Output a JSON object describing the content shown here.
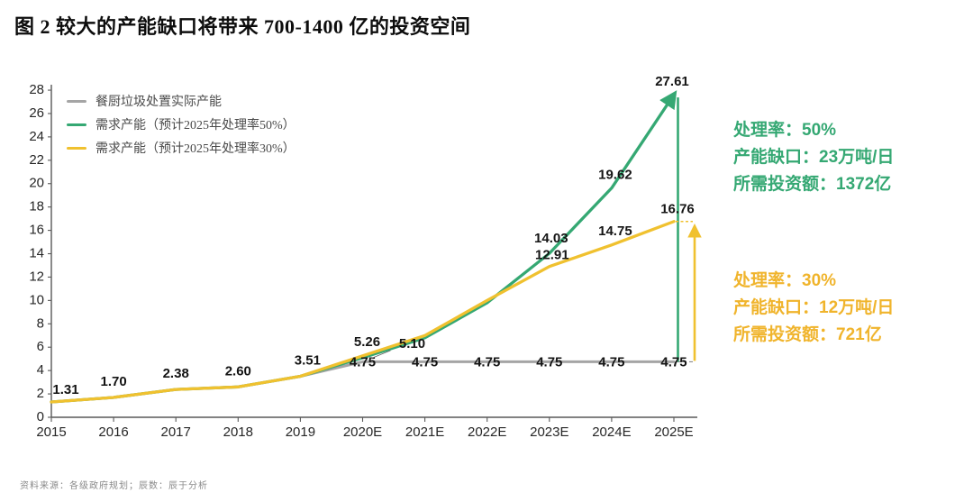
{
  "page": {
    "title": "图 2 较大的产能缺口将带来 700-1400 亿的投资空间",
    "footer": "资料来源：各级政府规划；辰数：辰于分析"
  },
  "colors": {
    "green": "#35a873",
    "yellow": "#f0c12f",
    "yellow_text": "#f0b42c",
    "gray": "#a5a5a5",
    "axis": "#595959"
  },
  "legend": [
    {
      "label": "餐厨垃圾处置实际产能",
      "color_key": "gray"
    },
    {
      "label": "需求产能（预计2025年处理率50%）",
      "color_key": "green"
    },
    {
      "label": "需求产能（预计2025年处理率30%）",
      "color_key": "yellow"
    }
  ],
  "annotations": {
    "green": {
      "lines": [
        {
          "label": "处理率：",
          "value": "50%"
        },
        {
          "label": "产能缺口：",
          "value": "23万吨/日"
        },
        {
          "label": "所需投资额：",
          "value": "1372亿"
        }
      ]
    },
    "yellow": {
      "lines": [
        {
          "label": "处理率：",
          "value": "30%"
        },
        {
          "label": "产能缺口：",
          "value": "12万吨/日"
        },
        {
          "label": "所需投资额：",
          "value": "721亿"
        }
      ]
    }
  },
  "chart_data": {
    "type": "line",
    "title": "图 2 较大的产能缺口将带来 700-1400 亿的投资空间",
    "categories": [
      "2015",
      "2016",
      "2017",
      "2018",
      "2019",
      "2020E",
      "2021E",
      "2022E",
      "2023E",
      "2024E",
      "2025E"
    ],
    "ylim": [
      0,
      28
    ],
    "ytick_step": 2,
    "grid": false,
    "legend_position": "top-left",
    "unit_note": "万吨/日",
    "series": [
      {
        "name": "餐厨垃圾处置实际产能",
        "color": "gray",
        "values": [
          1.31,
          1.7,
          2.38,
          2.6,
          3.51,
          4.75,
          4.75,
          4.75,
          4.75,
          4.75,
          4.75
        ],
        "labels": [
          {
            "i": 0,
            "text": "1.31",
            "dx": 16,
            "dy": -9
          },
          {
            "i": 1,
            "text": "1.70",
            "dx": 0,
            "dy": -13
          },
          {
            "i": 2,
            "text": "2.38",
            "dx": 0,
            "dy": -13
          },
          {
            "i": 3,
            "text": "2.60",
            "dx": 0,
            "dy": -13
          },
          {
            "i": 4,
            "text": "3.51",
            "dx": 8,
            "dy": -13
          },
          {
            "i": 5,
            "text": "4.75",
            "dx": 0,
            "dy": 5
          },
          {
            "i": 6,
            "text": "4.75",
            "dx": 0,
            "dy": 5
          },
          {
            "i": 7,
            "text": "4.75",
            "dx": 0,
            "dy": 5
          },
          {
            "i": 8,
            "text": "4.75",
            "dx": 0,
            "dy": 5
          },
          {
            "i": 9,
            "text": "4.75",
            "dx": 0,
            "dy": 5
          },
          {
            "i": 10,
            "text": "4.75",
            "dx": 0,
            "dy": 5
          }
        ]
      },
      {
        "name": "需求产能（预计2025年处理率50%）",
        "color": "green",
        "arrow_end": true,
        "values": [
          1.31,
          1.7,
          2.38,
          2.6,
          3.51,
          5.1,
          6.8,
          9.8,
          14.03,
          19.62,
          27.61
        ],
        "labels": [
          {
            "i": 5,
            "text": "5.10",
            "dx": 55,
            "dy": -11,
            "leader": true
          },
          {
            "i": 8,
            "text": "14.03",
            "dx": 2,
            "dy": -12
          },
          {
            "i": 9,
            "text": "19.62",
            "dx": 4,
            "dy": -10
          },
          {
            "i": 10,
            "text": "27.61",
            "dx": -2,
            "dy": -10
          }
        ]
      },
      {
        "name": "需求产能（预计2025年处理率30%）",
        "color": "yellow",
        "values": [
          1.31,
          1.7,
          2.38,
          2.6,
          3.51,
          5.26,
          7.0,
          10.0,
          12.91,
          14.75,
          16.76
        ],
        "labels": [
          {
            "i": 5,
            "text": "5.26",
            "dx": 5,
            "dy": -11
          },
          {
            "i": 8,
            "text": "12.91",
            "dx": 3,
            "dy": -8
          },
          {
            "i": 9,
            "text": "14.75",
            "dx": 4,
            "dy": -11
          },
          {
            "i": 10,
            "text": "16.76",
            "dx": 4,
            "dy": -9
          }
        ]
      }
    ],
    "gap_markers": {
      "base_value": 4.75,
      "green_top": 27.61,
      "yellow_top": 16.76
    }
  }
}
